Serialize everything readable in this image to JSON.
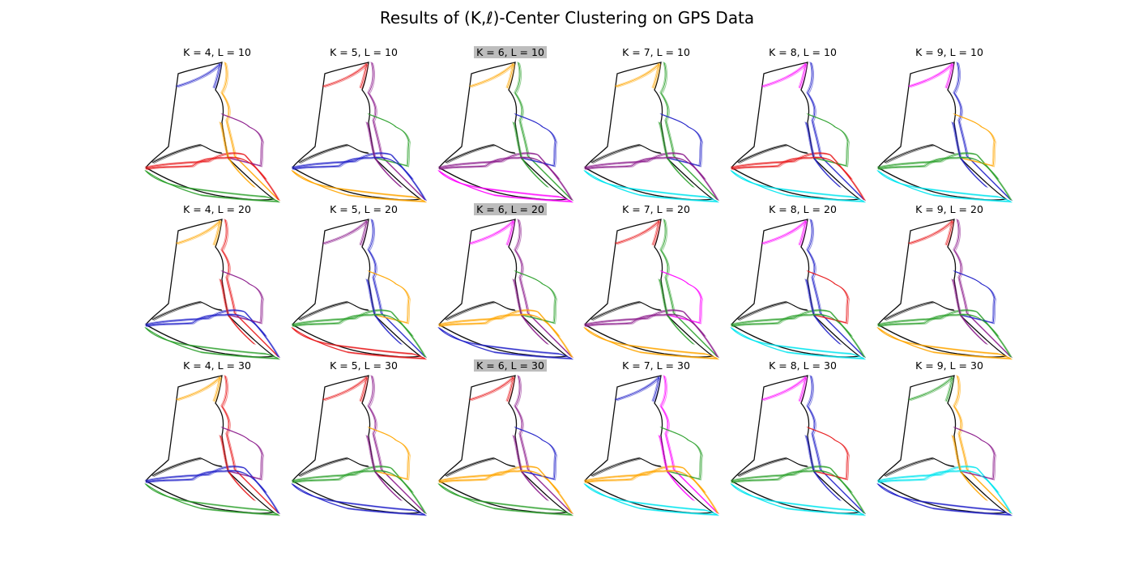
{
  "title": "Results of (K,ℓ)-Center Clustering on GPS Data",
  "colors": {
    "black": "#000000",
    "red": "#e8191c",
    "green": "#2ca02c",
    "blue": "#2020c8",
    "orange": "#ffa500",
    "purple": "#8b1a8b",
    "magenta": "#ff00ff",
    "cyan": "#00e5ee",
    "highlight": "#bdbdbd"
  },
  "chart_data": {
    "type": "line",
    "layout": "grid 3 rows x 6 columns",
    "highlighted_column": "K = 6",
    "panels": [
      {
        "title": "K = 4, L = 10",
        "highlight": false,
        "colors": [
          "black",
          "orange",
          "red",
          "green",
          "blue",
          "purple"
        ]
      },
      {
        "title": "K = 5, L = 10",
        "highlight": false,
        "colors": [
          "black",
          "purple",
          "blue",
          "orange",
          "red",
          "green"
        ]
      },
      {
        "title": "K = 6, L = 10",
        "highlight": true,
        "colors": [
          "black",
          "green",
          "purple",
          "magenta",
          "orange",
          "blue"
        ]
      },
      {
        "title": "K = 7, L = 10",
        "highlight": false,
        "colors": [
          "black",
          "green",
          "purple",
          "cyan",
          "orange",
          "blue"
        ]
      },
      {
        "title": "K = 8, L = 10",
        "highlight": false,
        "colors": [
          "black",
          "blue",
          "red",
          "cyan",
          "magenta",
          "green"
        ]
      },
      {
        "title": "K = 9, L = 10",
        "highlight": false,
        "colors": [
          "black",
          "blue",
          "green",
          "cyan",
          "magenta",
          "orange"
        ]
      },
      {
        "title": "K = 4, L = 20",
        "highlight": false,
        "colors": [
          "black",
          "red",
          "blue",
          "green",
          "orange",
          "purple"
        ]
      },
      {
        "title": "K = 5, L = 20",
        "highlight": false,
        "colors": [
          "black",
          "blue",
          "green",
          "red",
          "purple",
          "orange"
        ]
      },
      {
        "title": "K = 6, L = 20",
        "highlight": true,
        "colors": [
          "black",
          "purple",
          "orange",
          "blue",
          "magenta",
          "green"
        ]
      },
      {
        "title": "K = 7, L = 20",
        "highlight": false,
        "colors": [
          "black",
          "green",
          "purple",
          "orange",
          "red",
          "magenta"
        ]
      },
      {
        "title": "K = 8, L = 20",
        "highlight": false,
        "colors": [
          "black",
          "blue",
          "green",
          "cyan",
          "magenta",
          "red"
        ]
      },
      {
        "title": "K = 9, L = 20",
        "highlight": false,
        "colors": [
          "black",
          "purple",
          "green",
          "orange",
          "red",
          "blue"
        ]
      },
      {
        "title": "K = 4, L = 30",
        "highlight": false,
        "colors": [
          "black",
          "red",
          "blue",
          "green",
          "orange",
          "purple"
        ]
      },
      {
        "title": "K = 5, L = 30",
        "highlight": false,
        "colors": [
          "black",
          "purple",
          "green",
          "blue",
          "red",
          "orange"
        ]
      },
      {
        "title": "K = 6, L = 30",
        "highlight": true,
        "colors": [
          "black",
          "purple",
          "orange",
          "green",
          "red",
          "blue"
        ]
      },
      {
        "title": "K = 7, L = 30",
        "highlight": false,
        "colors": [
          "black",
          "magenta",
          "orange",
          "cyan",
          "blue",
          "green"
        ]
      },
      {
        "title": "K = 8, L = 30",
        "highlight": false,
        "colors": [
          "black",
          "blue",
          "green",
          "cyan",
          "magenta",
          "red"
        ]
      },
      {
        "title": "K = 9, L = 30",
        "highlight": false,
        "colors": [
          "black",
          "orange",
          "cyan",
          "blue",
          "green",
          "purple"
        ]
      }
    ]
  }
}
